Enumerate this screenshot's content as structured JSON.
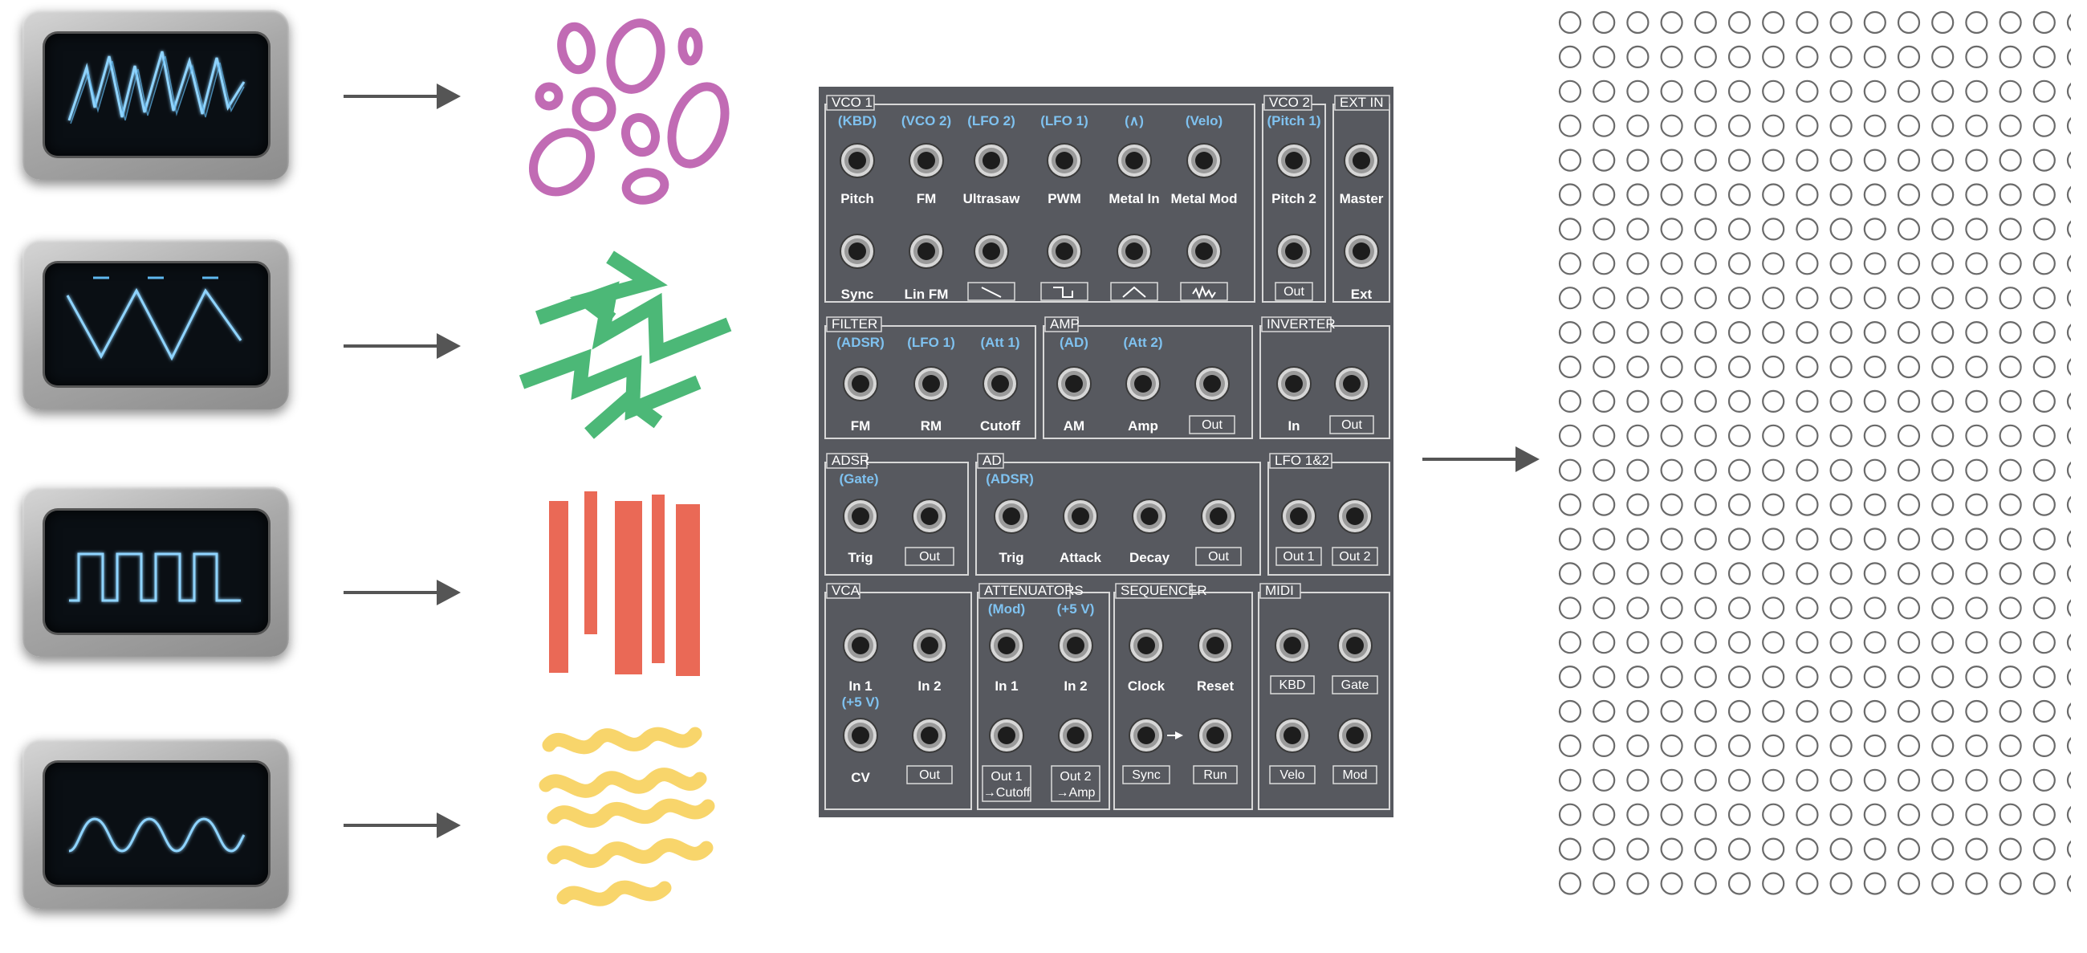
{
  "panel": {
    "sections": [
      {
        "title": "VCO 1"
      },
      {
        "title": "VCO 2"
      },
      {
        "title": "EXT IN"
      },
      {
        "title": "FILTER"
      },
      {
        "title": "AMP"
      },
      {
        "title": "INVERTER"
      },
      {
        "title": "ADSR"
      },
      {
        "title": "AD"
      },
      {
        "title": "LFO 1&2"
      },
      {
        "title": "VCA"
      },
      {
        "title": "ATTENUATORS"
      },
      {
        "title": "SEQUENCER"
      },
      {
        "title": "MIDI"
      }
    ],
    "vco1": {
      "mods": [
        "(KBD)",
        "(VCO 2)",
        "(LFO 2)",
        "(LFO 1)",
        "(∧)",
        "(Velo)"
      ],
      "row1": [
        "Pitch",
        "FM",
        "Ultrasaw",
        "PWM",
        "Metal In",
        "Metal Mod"
      ],
      "row2": [
        "Sync",
        "Lin FM"
      ]
    },
    "vco2": {
      "mod": "(Pitch 1)",
      "label": "Pitch 2",
      "out": "Out"
    },
    "extin": {
      "label1": "Master",
      "label2": "Ext"
    },
    "filter": {
      "mods": [
        "(ADSR)",
        "(LFO 1)",
        "(Att 1)"
      ],
      "labels": [
        "FM",
        "RM",
        "Cutoff"
      ]
    },
    "amp": {
      "mods": [
        "(AD)",
        "(Att 2)"
      ],
      "labels": [
        "AM",
        "Amp"
      ],
      "out": "Out"
    },
    "inverter": {
      "label": "In",
      "out": "Out"
    },
    "adsr": {
      "mod": "(Gate)",
      "label": "Trig",
      "out": "Out"
    },
    "ad": {
      "mod": "(ADSR)",
      "labels": [
        "Trig",
        "Attack",
        "Decay"
      ],
      "out": "Out"
    },
    "lfo": {
      "out1": "Out 1",
      "out2": "Out 2"
    },
    "vca": {
      "labels": [
        "In 1",
        "In 2"
      ],
      "mod": "(+5 V)",
      "cv": "CV",
      "out": "Out"
    },
    "attenuators": {
      "mods": [
        "(Mod)",
        "(+5 V)"
      ],
      "labels": [
        "In 1",
        "In 2"
      ],
      "out1a": "Out 1",
      "out1b": "→Cutoff",
      "out2a": "Out 2",
      "out2b": "→Amp"
    },
    "sequencer": {
      "labels": [
        "Clock",
        "Reset"
      ],
      "sync": "Sync",
      "run": "Run"
    },
    "midi": {
      "kbd": "KBD",
      "gate": "Gate",
      "velo": "Velo",
      "mod": "Mod"
    }
  },
  "colors": {
    "purple": "#c16bb4",
    "green": "#4cb877",
    "red": "#ea6956",
    "yellow": "#f8d56b",
    "arrow": "#555555",
    "panel": "#57595f",
    "blue": "#7fc2f0"
  },
  "icons": [
    "sawtooth-wave-icon",
    "triangle-wave-icon",
    "square-wave-icon",
    "sine-wave-icon"
  ]
}
